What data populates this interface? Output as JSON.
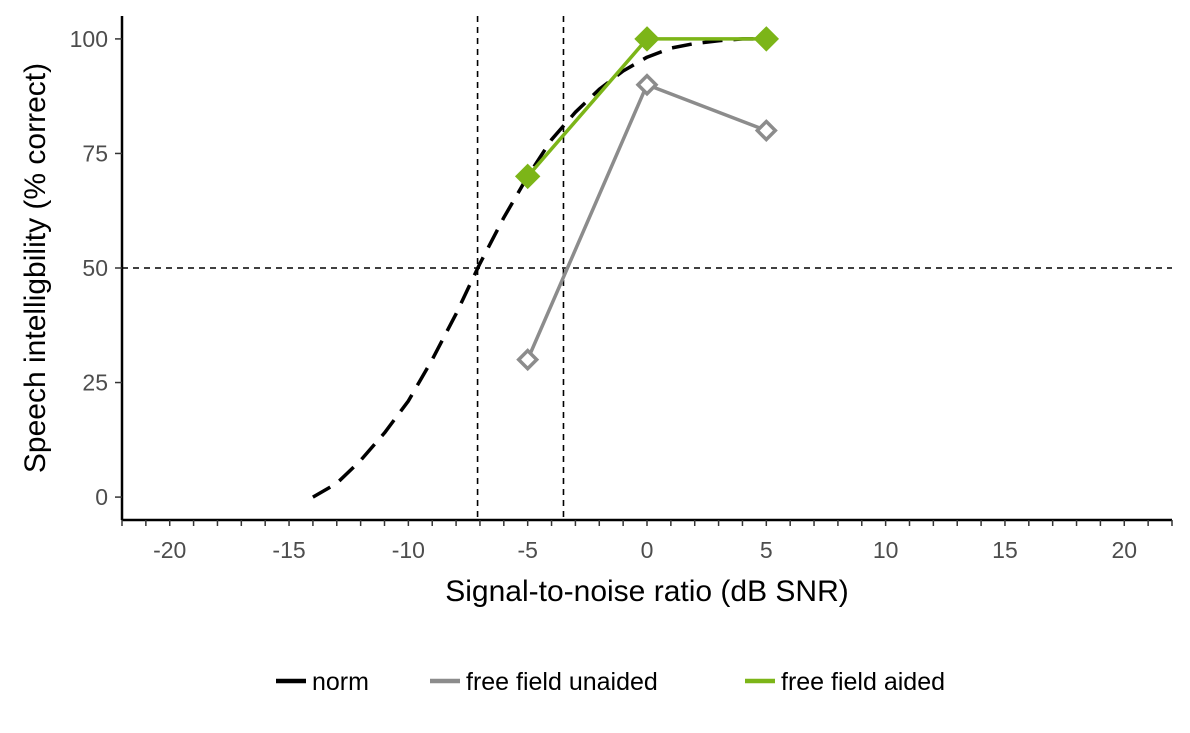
{
  "chart_data": {
    "type": "line",
    "xlabel": "Signal-to-noise ratio (dB SNR)",
    "ylabel": "Speech intelligbility (% correct)",
    "xlim": [
      -22,
      22
    ],
    "ylim": [
      -5,
      105
    ],
    "x_ticks": [
      -20,
      -15,
      -10,
      -5,
      0,
      5,
      10,
      15,
      20
    ],
    "y_ticks": [
      0,
      25,
      50,
      75,
      100
    ],
    "x_tick_labels": [
      "-20",
      "-15",
      "-10",
      "-5",
      "0",
      "5",
      "10",
      "15",
      "20"
    ],
    "y_tick_labels": [
      "0",
      "25",
      "50",
      "75",
      "100"
    ],
    "grid": false,
    "legend_position": "bottom",
    "reference_lines": [
      {
        "orientation": "vertical",
        "x": -7.1
      },
      {
        "orientation": "vertical",
        "x": -3.5
      },
      {
        "orientation": "horizontal",
        "y": 50
      }
    ],
    "series": [
      {
        "name": "norm",
        "color": "#000000",
        "style": "dashed",
        "marker": "none",
        "x": [
          -14,
          -13,
          -12,
          -11,
          -10,
          -9,
          -8,
          -7,
          -6,
          -5,
          -4,
          -3,
          -2,
          -1,
          0,
          1,
          2,
          3,
          4,
          5
        ],
        "y": [
          0,
          3,
          8,
          14,
          21,
          30,
          40,
          51,
          61,
          70,
          78,
          84,
          89,
          93,
          96,
          98,
          99,
          99.6,
          100,
          100
        ]
      },
      {
        "name": "free field unaided",
        "color": "#8c8c8c",
        "style": "solid",
        "marker": "open-diamond",
        "x": [
          -5,
          0,
          5
        ],
        "y": [
          30,
          90,
          80
        ]
      },
      {
        "name": "free field aided",
        "color": "#7cb518",
        "style": "solid",
        "marker": "filled-diamond",
        "x": [
          -5,
          0,
          5
        ],
        "y": [
          70,
          100,
          100
        ]
      }
    ]
  }
}
